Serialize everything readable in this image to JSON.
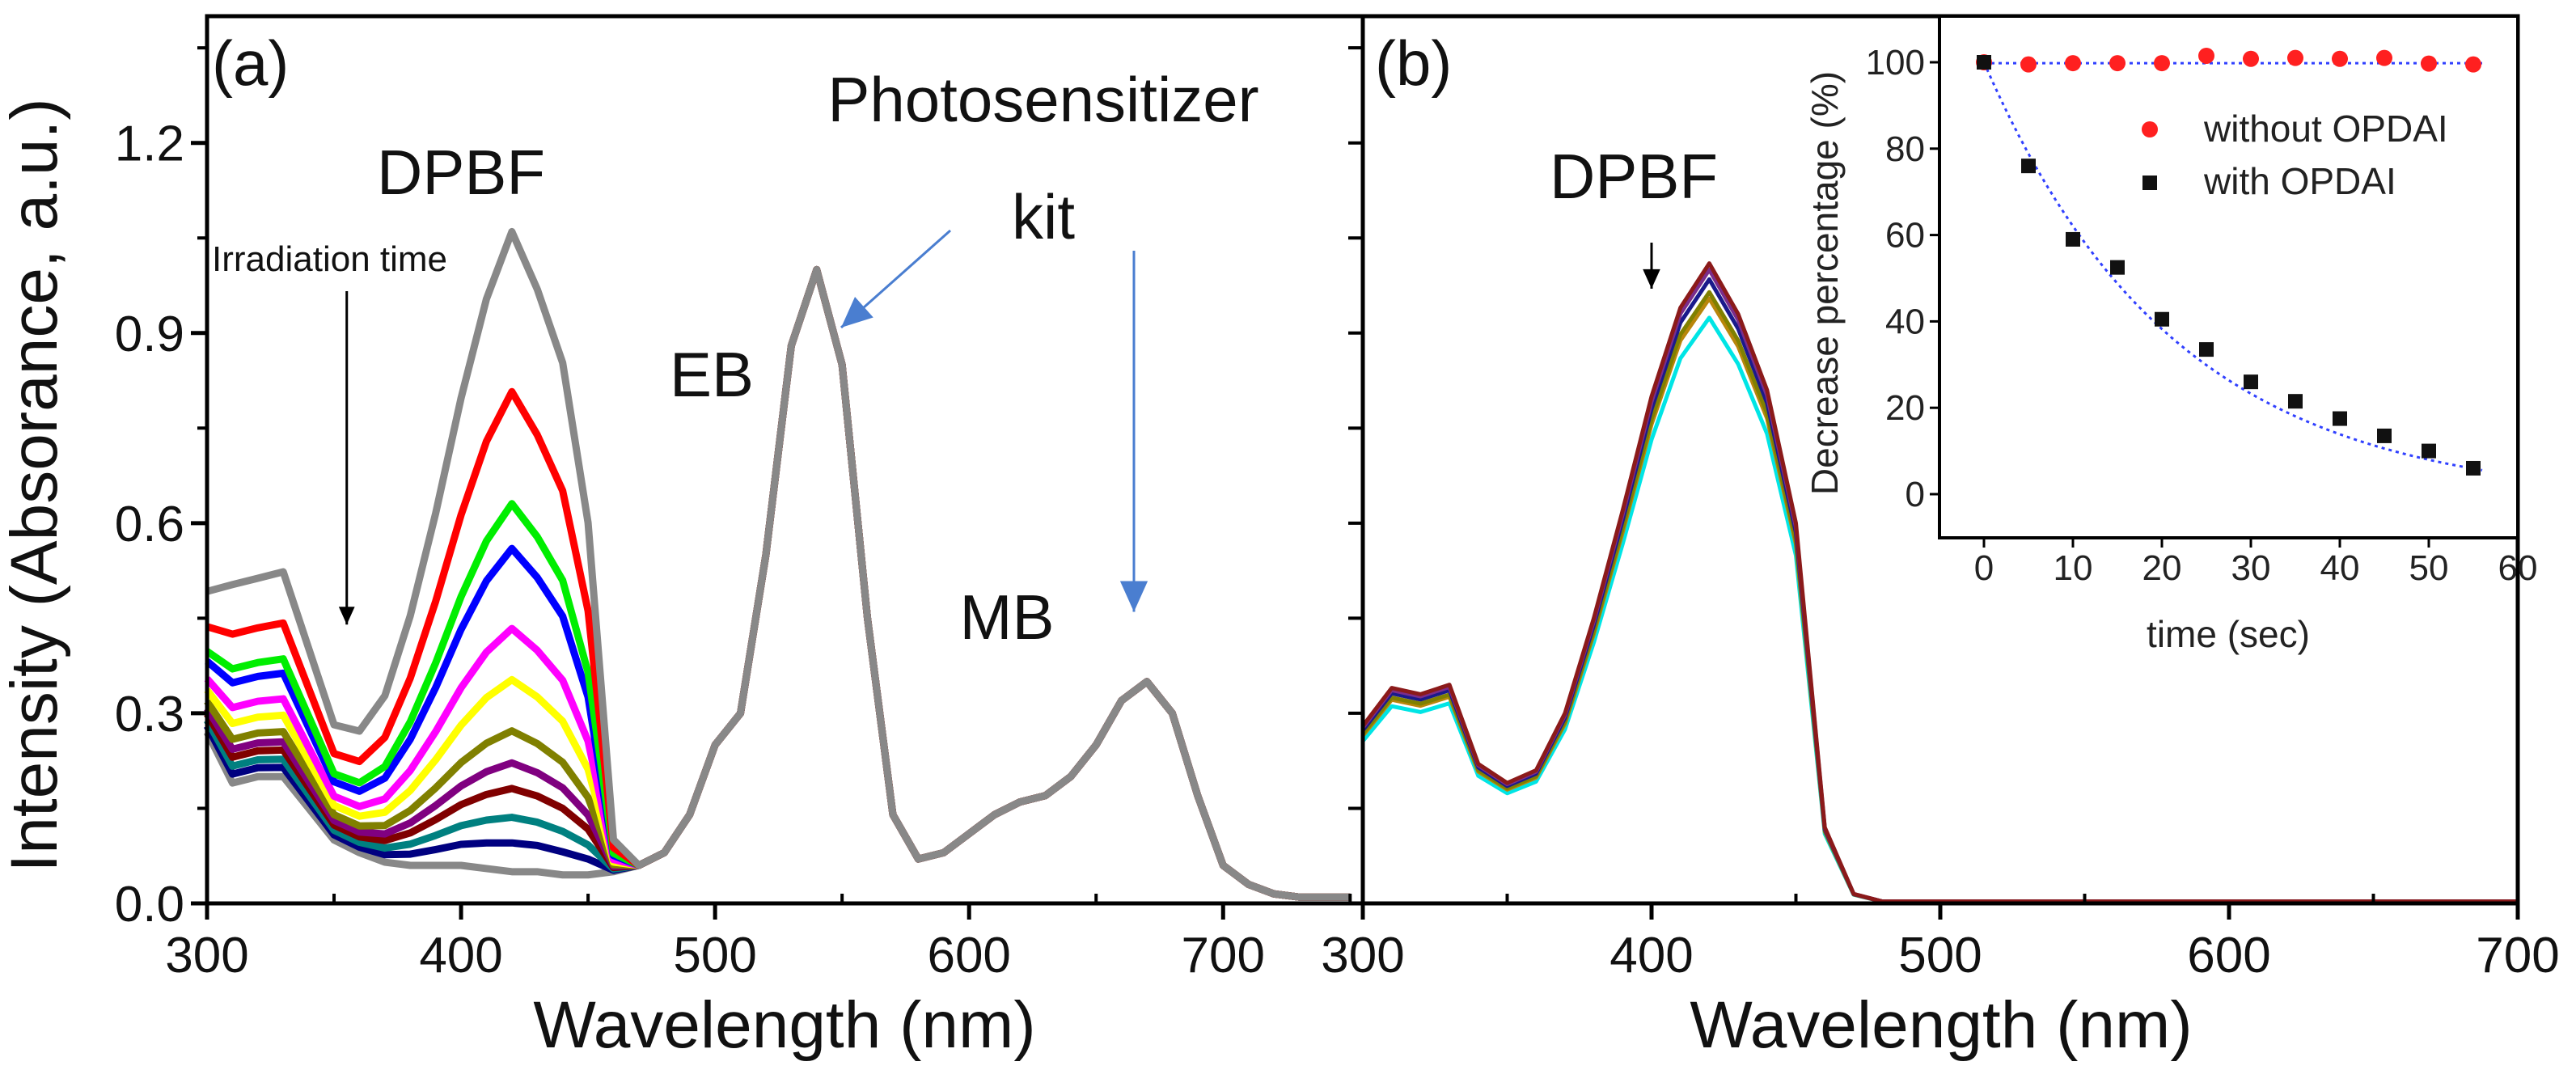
{
  "chart_data": [
    {
      "type": "line",
      "panel_label": "(a)",
      "xlabel": "Wavelength (nm)",
      "ylabel": "Intensity (Absorance, a.u.)",
      "xlim": [
        300,
        755
      ],
      "ylim": [
        0,
        1.4
      ],
      "xticks": [
        "300",
        "400",
        "500",
        "600",
        "700"
      ],
      "yticks": [
        "0.0",
        "0.3",
        "0.6",
        "0.9",
        "1.2"
      ],
      "annotations": {
        "dpbf": "DPBF",
        "irradiation": "Irradiation time",
        "photosensitizer": "Photosensitizer",
        "kit": "kit",
        "eb": "EB",
        "mb": "MB"
      },
      "wavelengths": [
        300,
        310,
        320,
        330,
        340,
        350,
        360,
        370,
        380,
        390,
        400,
        410,
        420,
        430,
        440,
        450,
        460,
        470,
        480,
        490,
        500,
        510,
        520,
        530,
        540,
        550,
        560,
        570,
        580,
        590,
        600,
        610,
        620,
        630,
        640,
        650,
        660,
        670,
        680,
        690,
        700,
        710,
        720,
        730,
        740,
        750
      ],
      "photosensitizer_baseline": [
        0.27,
        0.19,
        0.2,
        0.2,
        0.15,
        0.1,
        0.08,
        0.065,
        0.06,
        0.06,
        0.06,
        0.055,
        0.05,
        0.05,
        0.045,
        0.045,
        0.05,
        0.06,
        0.08,
        0.14,
        0.25,
        0.3,
        0.55,
        0.88,
        1.0,
        0.85,
        0.45,
        0.14,
        0.07,
        0.08,
        0.11,
        0.14,
        0.16,
        0.17,
        0.2,
        0.25,
        0.32,
        0.35,
        0.3,
        0.17,
        0.06,
        0.03,
        0.015,
        0.01,
        0.01,
        0.01
      ],
      "dpbf_profile": [
        0.22,
        0.31,
        0.31,
        0.32,
        0.25,
        0.18,
        0.19,
        0.26,
        0.39,
        0.55,
        0.73,
        0.89,
        1.0,
        0.91,
        0.8,
        0.55,
        0.05,
        0,
        0,
        0,
        0,
        0,
        0,
        0,
        0,
        0,
        0,
        0,
        0,
        0,
        0,
        0,
        0,
        0,
        0,
        0,
        0,
        0,
        0,
        0,
        0,
        0,
        0,
        0,
        0,
        0
      ],
      "series": [
        {
          "dpbf_amplitude": 1.0,
          "color": "#888888"
        },
        {
          "dpbf_amplitude": 0.75,
          "color": "#ff0000"
        },
        {
          "dpbf_amplitude": 0.575,
          "color": "#00ee00"
        },
        {
          "dpbf_amplitude": 0.505,
          "color": "#0000ff"
        },
        {
          "dpbf_amplitude": 0.38,
          "color": "#ff00ff"
        },
        {
          "dpbf_amplitude": 0.3,
          "color": "#ffff00"
        },
        {
          "dpbf_amplitude": 0.22,
          "color": "#808000"
        },
        {
          "dpbf_amplitude": 0.17,
          "color": "#800080"
        },
        {
          "dpbf_amplitude": 0.13,
          "color": "#800000"
        },
        {
          "dpbf_amplitude": 0.085,
          "color": "#008080"
        },
        {
          "dpbf_amplitude": 0.045,
          "color": "#000080"
        },
        {
          "dpbf_amplitude": 0.0,
          "color": "#888888"
        }
      ]
    },
    {
      "type": "line",
      "panel_label": "(b)",
      "xlabel": "Wavelength (nm)",
      "xlim": [
        300,
        700
      ],
      "ylim": [
        0,
        1.4
      ],
      "xticks": [
        "300",
        "400",
        "500",
        "600",
        "700"
      ],
      "annotations": {
        "dpbf": "DPBF"
      },
      "wavelengths": [
        300,
        310,
        320,
        330,
        340,
        350,
        360,
        370,
        380,
        390,
        400,
        410,
        420,
        430,
        440,
        450,
        460,
        470,
        480,
        500,
        550,
        600,
        650,
        700
      ],
      "dpbf_profile": [
        0.28,
        0.34,
        0.33,
        0.345,
        0.22,
        0.19,
        0.21,
        0.3,
        0.45,
        0.62,
        0.8,
        0.94,
        1.01,
        0.93,
        0.81,
        0.6,
        0.12,
        0.015,
        0.003,
        0.003,
        0.003,
        0.003,
        0.003,
        0.003
      ],
      "series": [
        {
          "scale": 1.0,
          "color": "#8b1a1a"
        },
        {
          "scale": 0.99,
          "color": "#7b2d8b"
        },
        {
          "scale": 0.975,
          "color": "#1a1a8b"
        },
        {
          "scale": 0.955,
          "color": "#808000"
        },
        {
          "scale": 0.945,
          "color": "#b8860b"
        },
        {
          "scale": 0.915,
          "color": "#00e5e5"
        }
      ]
    },
    {
      "type": "scatter",
      "inset": true,
      "xlabel": "time (sec)",
      "ylabel": "Decrease percentage (%)",
      "xlim": [
        -5,
        60
      ],
      "ylim": [
        -10,
        110
      ],
      "xticks": [
        "0",
        "10",
        "20",
        "30",
        "40",
        "50",
        "60"
      ],
      "yticks": [
        "0",
        "20",
        "40",
        "60",
        "80",
        "100"
      ],
      "x": [
        0,
        5,
        10,
        15,
        20,
        25,
        30,
        35,
        40,
        45,
        50,
        55
      ],
      "series": [
        {
          "name": "without OPDAI",
          "marker": "circle",
          "color": "#ff2020",
          "values": [
            100,
            99.5,
            99.8,
            99.8,
            99.8,
            101.5,
            100.8,
            101,
            100.8,
            101,
            99.7,
            99.5
          ]
        },
        {
          "name": "with OPDAI",
          "marker": "square",
          "color": "#111111",
          "values": [
            100,
            76,
            59,
            52.5,
            40.5,
            33.5,
            26,
            21.5,
            17.5,
            13.5,
            10,
            6
          ]
        }
      ],
      "fit_color": "#3040ff"
    }
  ]
}
